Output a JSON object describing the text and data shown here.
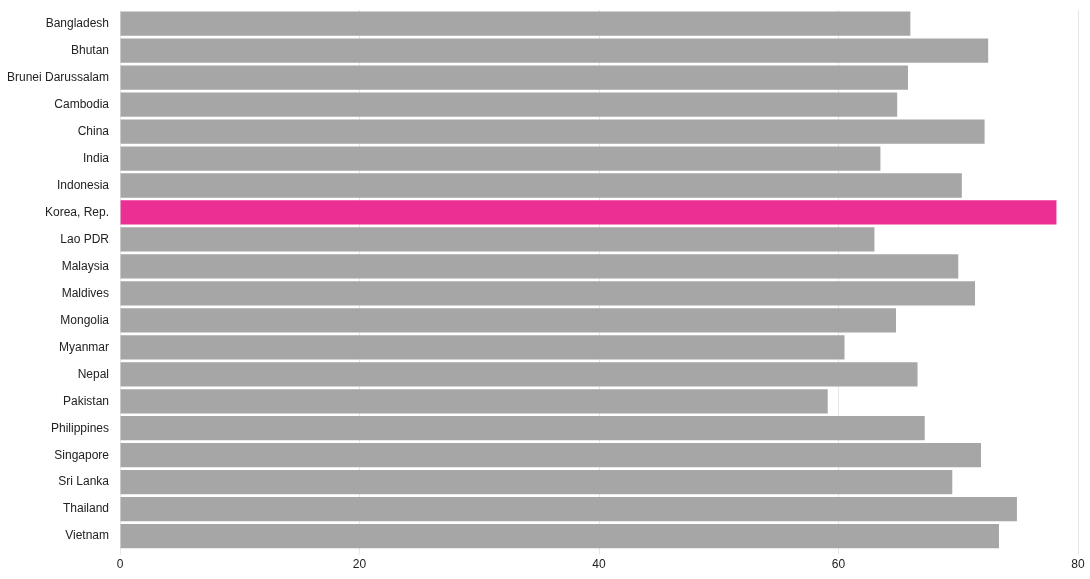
{
  "chart_data": {
    "type": "bar",
    "orientation": "horizontal",
    "categories": [
      "Bangladesh",
      "Bhutan",
      "Brunei Darussalam",
      "Cambodia",
      "China",
      "India",
      "Indonesia",
      "Korea, Rep.",
      "Lao PDR",
      "Malaysia",
      "Maldives",
      "Mongolia",
      "Myanmar",
      "Nepal",
      "Pakistan",
      "Philippines",
      "Singapore",
      "Sri Lanka",
      "Thailand",
      "Vietnam"
    ],
    "values": [
      66.0,
      72.5,
      65.8,
      64.9,
      72.2,
      63.5,
      70.3,
      78.2,
      63.0,
      70.0,
      71.4,
      64.8,
      60.5,
      66.6,
      59.1,
      67.2,
      71.9,
      69.5,
      74.9,
      73.4
    ],
    "colors": [
      "#a6a6a6",
      "#a6a6a6",
      "#a6a6a6",
      "#a6a6a6",
      "#a6a6a6",
      "#a6a6a6",
      "#a6a6a6",
      "#ec2f93",
      "#a6a6a6",
      "#a6a6a6",
      "#a6a6a6",
      "#a6a6a6",
      "#a6a6a6",
      "#a6a6a6",
      "#a6a6a6",
      "#a6a6a6",
      "#a6a6a6",
      "#a6a6a6",
      "#a6a6a6",
      "#a6a6a6"
    ],
    "xlim": [
      0,
      80
    ],
    "xticks": [
      0,
      20,
      40,
      60,
      80
    ],
    "grid": "x",
    "legend": false
  }
}
